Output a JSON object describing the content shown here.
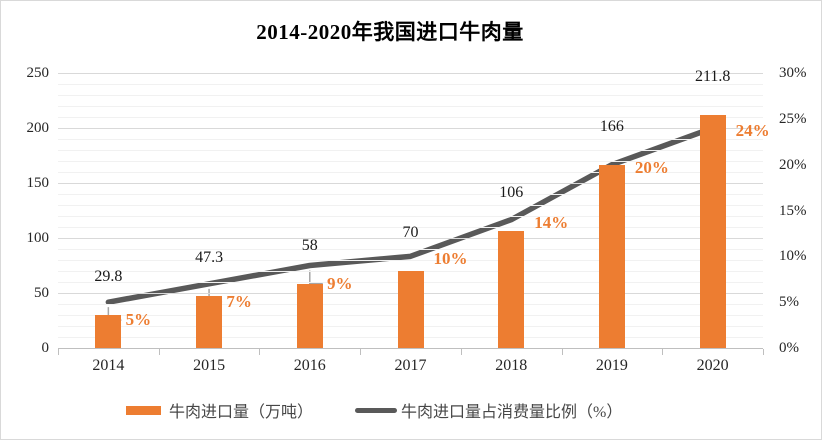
{
  "chart_data": {
    "type": "combo-bar-line",
    "title": "2014-2020年我国进口牛肉量",
    "categories": [
      "2014",
      "2015",
      "2016",
      "2017",
      "2018",
      "2019",
      "2020"
    ],
    "series": [
      {
        "name": "牛肉进口量（万吨）",
        "type": "bar",
        "axis": "left",
        "values": [
          29.8,
          47.3,
          58,
          70,
          106,
          166,
          211.8
        ],
        "data_labels": [
          "29.8",
          "47.3",
          "58",
          "70",
          "106",
          "166",
          "211.8"
        ],
        "color": "#ED7D31"
      },
      {
        "name": "牛肉进口量占消费量比例（%）",
        "type": "line",
        "axis": "right",
        "values": [
          5,
          7,
          9,
          10,
          14,
          20,
          24
        ],
        "data_labels": [
          "5%",
          "7%",
          "9%",
          "10%",
          "14%",
          "20%",
          "24%"
        ],
        "color": "#595959",
        "label_color": "#ED7D31"
      }
    ],
    "left_axis": {
      "min": 0,
      "max": 250,
      "major_unit": 50,
      "minor_unit": 10,
      "tick_labels": [
        "0",
        "50",
        "100",
        "150",
        "200",
        "250"
      ]
    },
    "right_axis": {
      "min": 0,
      "max": 30,
      "major_unit": 5,
      "tick_labels": [
        "0%",
        "5%",
        "10%",
        "15%",
        "20%",
        "25%",
        "30%"
      ]
    },
    "legend_position": "bottom",
    "gridlines": {
      "horizontal_major": true,
      "horizontal_minor": true,
      "vertical": false
    }
  },
  "colors": {
    "bar": "#ED7D31",
    "line": "#595959",
    "percent_label": "#ED7D31",
    "value_label": "#1a1a1a",
    "grid_major": "#d9d9d9",
    "grid_minor": "#f1f1f1",
    "axis_line": "#bfbfbf",
    "leader_line": "#a6a6a6",
    "legend_text": "#474747",
    "background": "#ffffff"
  }
}
